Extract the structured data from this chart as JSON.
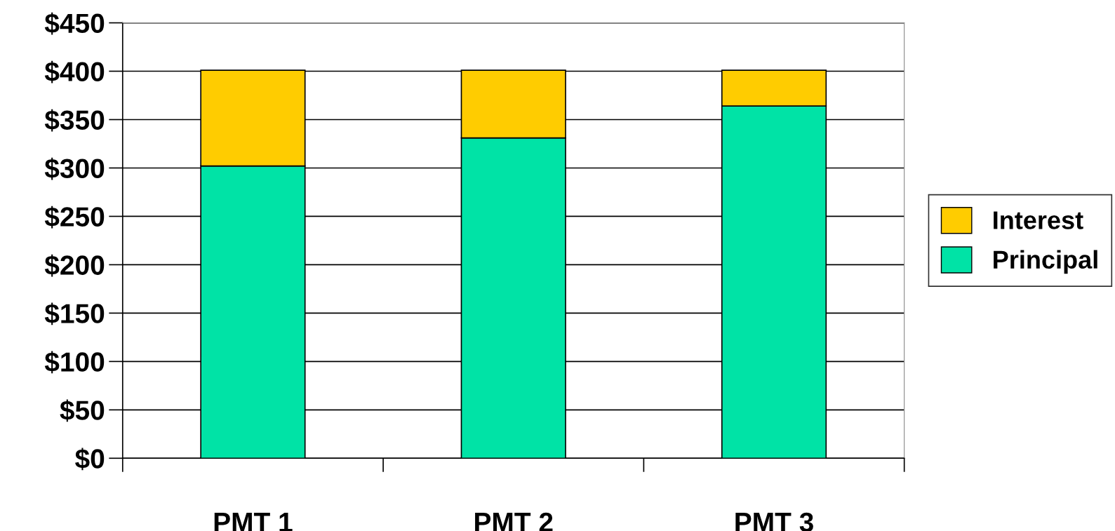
{
  "chart_data": {
    "type": "bar",
    "stacked": true,
    "categories": [
      "PMT 1",
      "PMT 2",
      "PMT 3"
    ],
    "series": [
      {
        "name": "Principal",
        "color": "#00e3a6",
        "values": [
          302,
          331,
          364
        ]
      },
      {
        "name": "Interest",
        "color": "#ffcc00",
        "values": [
          99,
          70,
          37
        ]
      }
    ],
    "ylim": [
      0,
      450
    ],
    "yticks": [
      {
        "value": 0,
        "label": "$0"
      },
      {
        "value": 50,
        "label": "$50"
      },
      {
        "value": 100,
        "label": "$100"
      },
      {
        "value": 150,
        "label": "$150"
      },
      {
        "value": 200,
        "label": "$200"
      },
      {
        "value": 250,
        "label": "$250"
      },
      {
        "value": 300,
        "label": "$300"
      },
      {
        "value": 350,
        "label": "$350"
      },
      {
        "value": 400,
        "label": "$400"
      },
      {
        "value": 450,
        "label": "$450"
      }
    ],
    "grid": "y",
    "legend": "right"
  }
}
